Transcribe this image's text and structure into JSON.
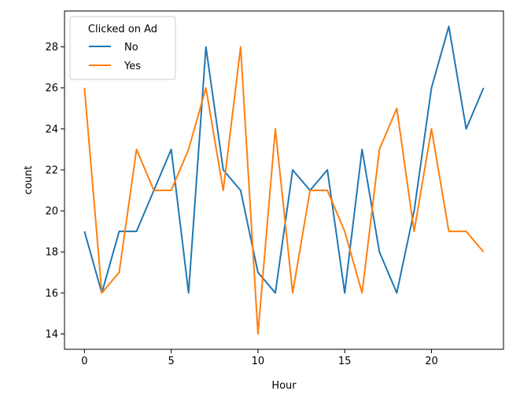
{
  "chart_data": {
    "type": "line",
    "title": "",
    "xlabel": "Hour",
    "ylabel": "count",
    "x": [
      0,
      1,
      2,
      3,
      4,
      5,
      6,
      7,
      8,
      9,
      10,
      11,
      12,
      13,
      14,
      15,
      16,
      17,
      18,
      19,
      20,
      21,
      22,
      23
    ],
    "series": [
      {
        "name": "No",
        "color": "#1f77b4",
        "values": [
          19,
          16,
          19,
          19,
          21,
          23,
          16,
          28,
          22,
          21,
          17,
          16,
          22,
          21,
          22,
          16,
          23,
          18,
          16,
          20,
          26,
          29,
          24,
          26
        ]
      },
      {
        "name": "Yes",
        "color": "#ff7f0e",
        "values": [
          26,
          16,
          17,
          23,
          21,
          21,
          23,
          26,
          21,
          28,
          14,
          24,
          16,
          21,
          21,
          19,
          16,
          23,
          25,
          19,
          24,
          19,
          19,
          18
        ]
      }
    ],
    "xlim": [
      -1.15,
      24.15
    ],
    "ylim": [
      13.25,
      29.75
    ],
    "xticks": [
      0,
      5,
      10,
      15,
      20
    ],
    "yticks": [
      14,
      16,
      18,
      20,
      22,
      24,
      26,
      28
    ],
    "legend": {
      "title": "Clicked on Ad",
      "placement": "top-left"
    },
    "grid": false
  }
}
